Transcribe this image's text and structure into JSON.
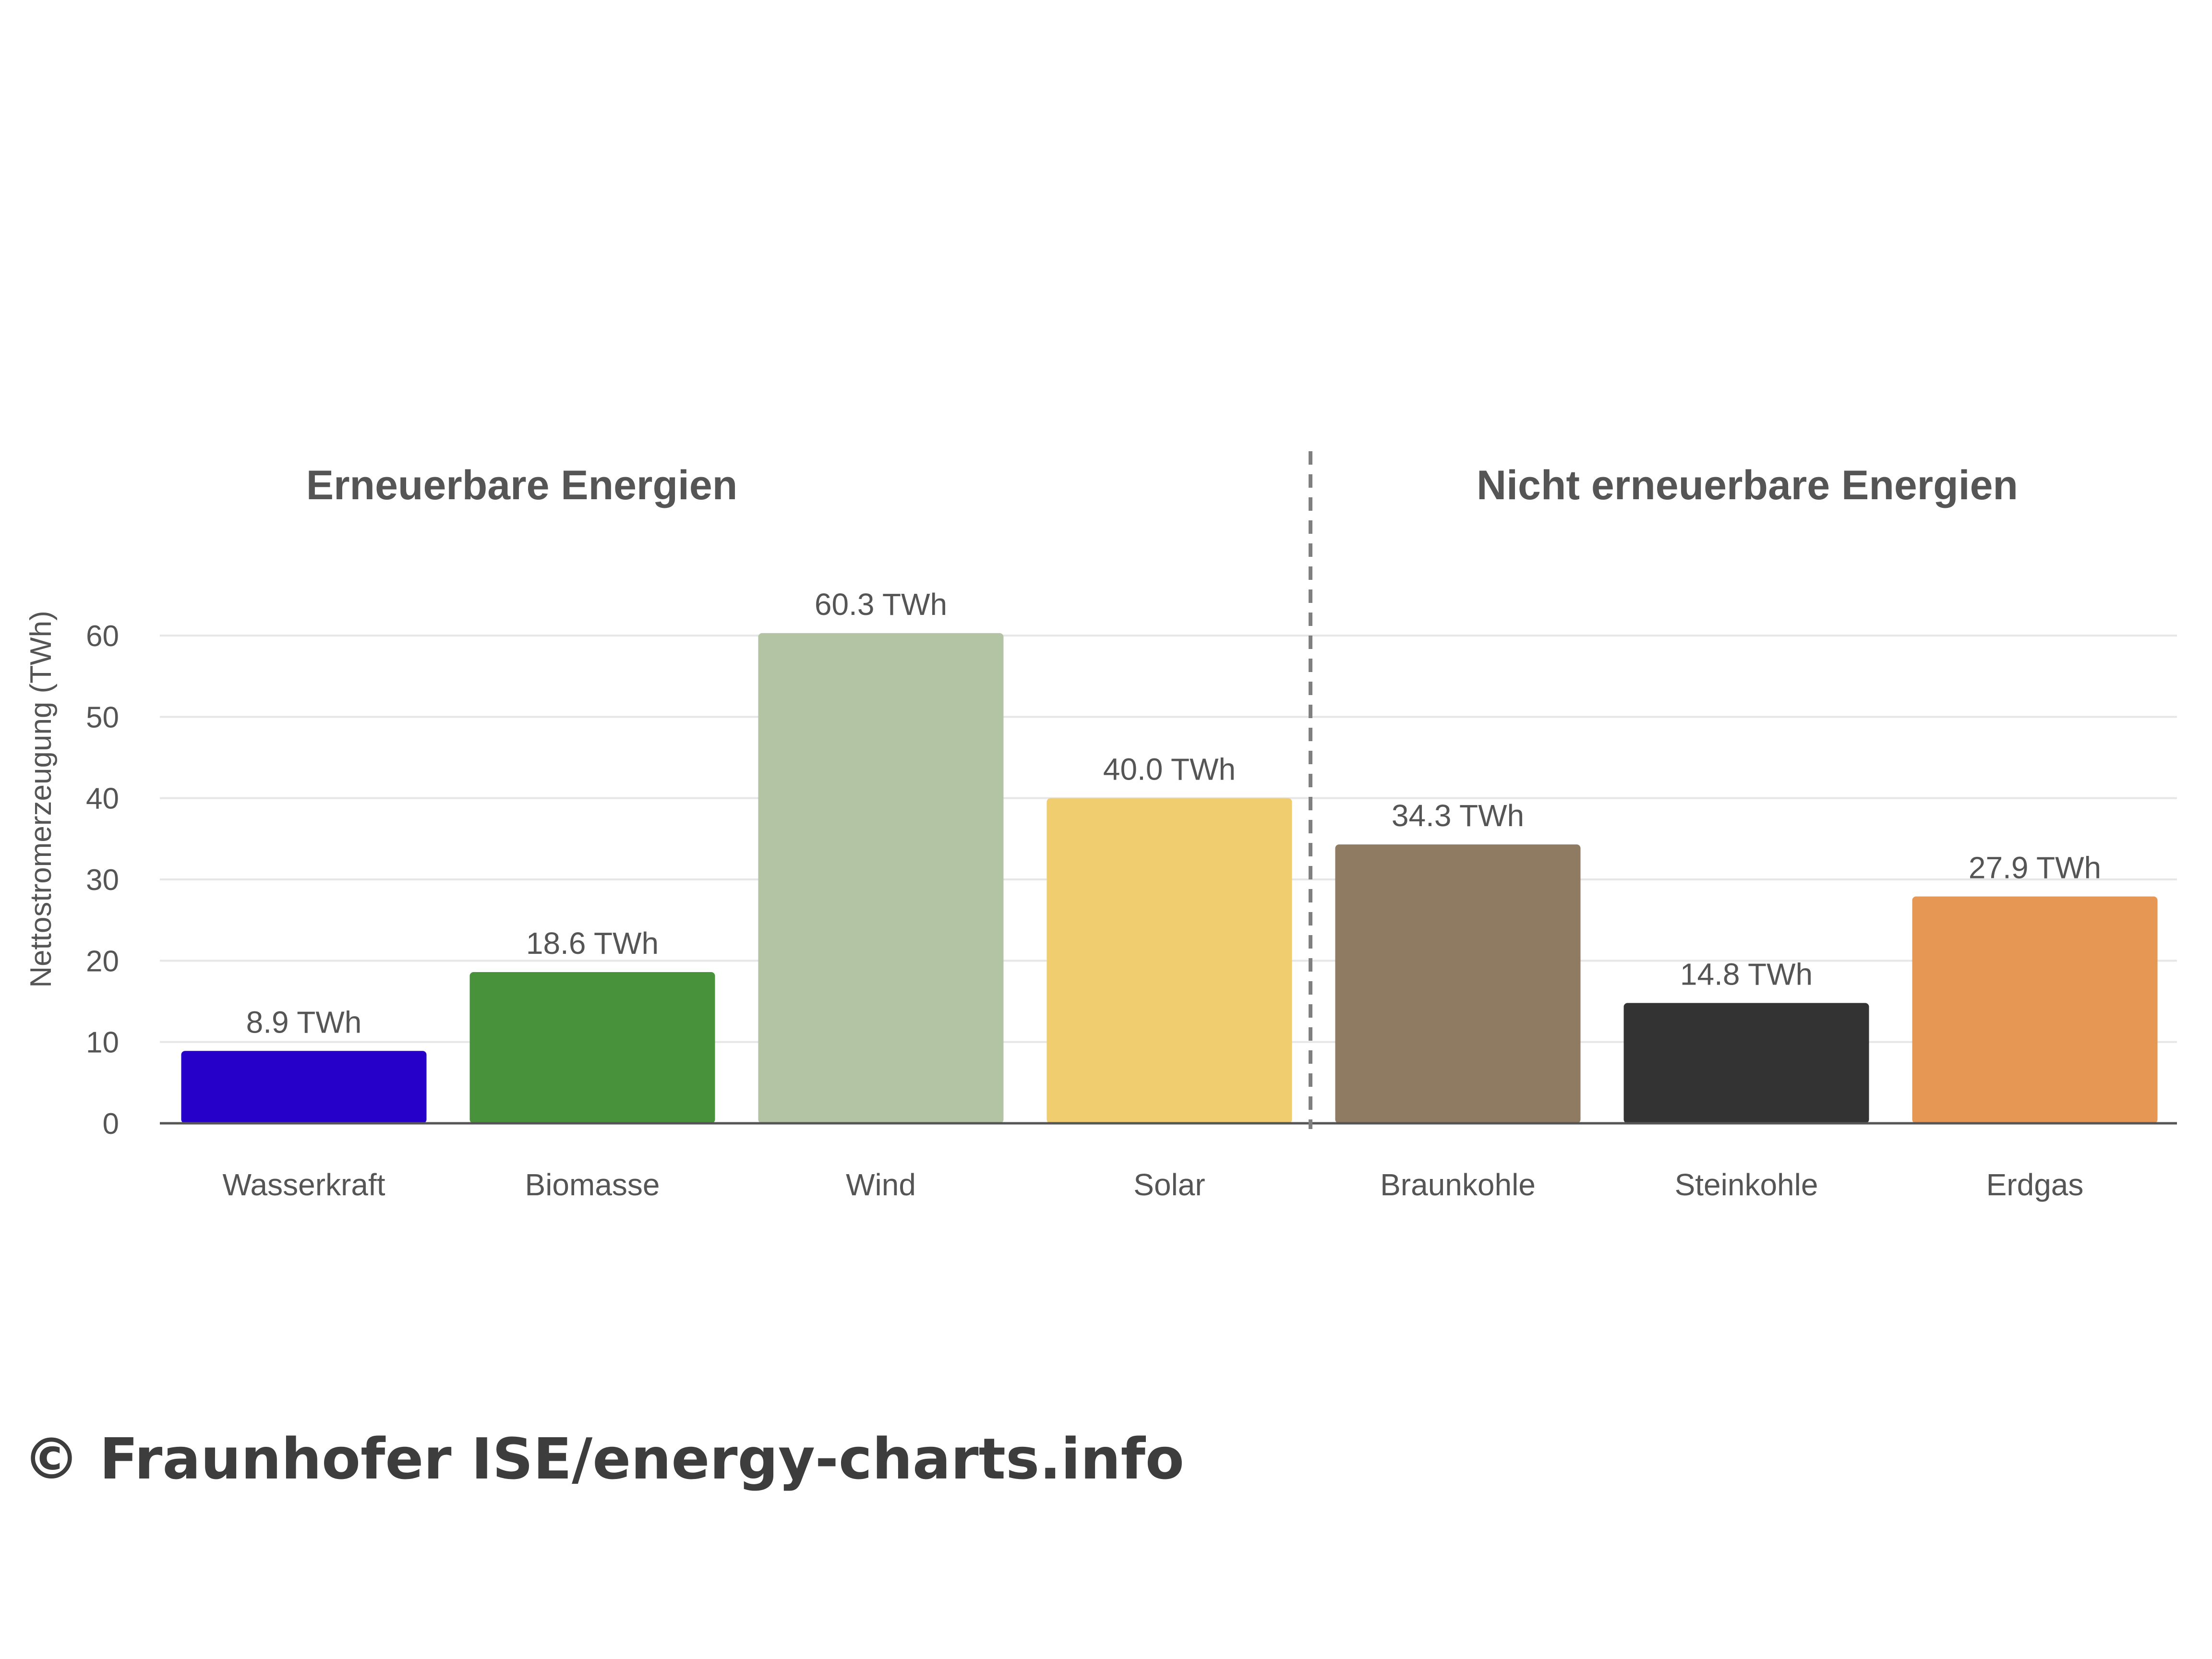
{
  "chart_data": {
    "type": "bar",
    "categories": [
      "Wasserkraft",
      "Biomasse",
      "Wind",
      "Solar",
      "Braunkohle",
      "Steinkohle",
      "Erdgas"
    ],
    "values": [
      8.9,
      18.6,
      60.3,
      40.0,
      34.3,
      14.8,
      27.9
    ],
    "value_labels": [
      "8.9 TWh",
      "18.6 TWh",
      "60.3 TWh",
      "40.0 TWh",
      "34.3 TWh",
      "14.8 TWh",
      "27.9 TWh"
    ],
    "colors": [
      "#2600c8",
      "#48923c",
      "#b3c4a4",
      "#f0cd6e",
      "#8e7b62",
      "#333333",
      "#e69753"
    ],
    "groups": [
      {
        "title": "Erneuerbare Energien",
        "categories": [
          "Wasserkraft",
          "Biomasse",
          "Wind",
          "Solar"
        ]
      },
      {
        "title": "Nicht erneuerbare Energien",
        "categories": [
          "Braunkohle",
          "Steinkohle",
          "Erdgas"
        ]
      }
    ],
    "xlabel": "",
    "ylabel": "Nettostromerzeugung (TWh)",
    "ylim": [
      0,
      60
    ],
    "yticks": [
      0,
      10,
      20,
      30,
      40,
      50,
      60
    ],
    "grid": true,
    "legend": "none"
  },
  "footer": {
    "copyright": "© Fraunhofer ISE/energy-charts.info"
  }
}
